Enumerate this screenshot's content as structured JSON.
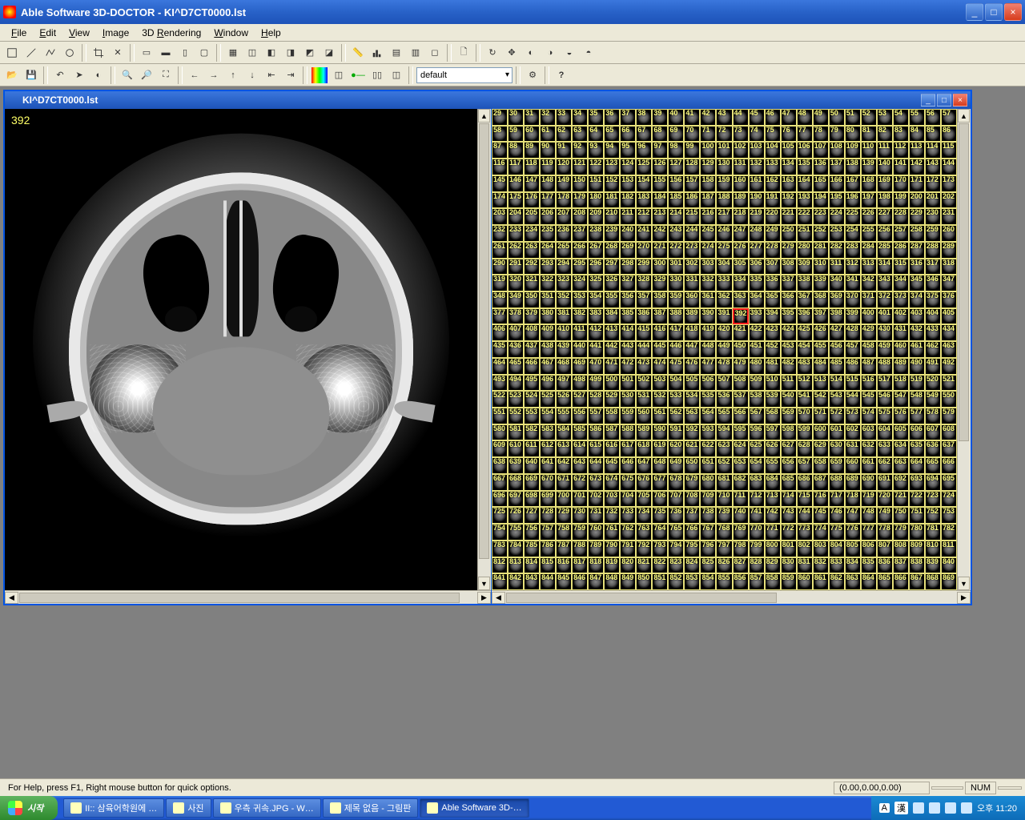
{
  "app": {
    "title": "Able Software 3D-DOCTOR - KI^D7CT0000.lst",
    "window_controls": {
      "minimize": "_",
      "maximize": "□",
      "close": "×"
    }
  },
  "menu": {
    "items": [
      "File",
      "Edit",
      "View",
      "Image",
      "3D Rendering",
      "Window",
      "Help"
    ]
  },
  "toolbar_combo": {
    "value": "default"
  },
  "child_window": {
    "title": "KI^D7CT0000.lst"
  },
  "left_pane": {
    "current_slice": "392"
  },
  "thumbnail_grid": {
    "start_index": 29,
    "end_index": 869,
    "cols": 29,
    "rows": 29,
    "selected_index": 392,
    "cell_border_color": "#e6e07a",
    "selected_border_color": "#ff2020",
    "label_color": "#ffff80"
  },
  "statusbar": {
    "help": "For Help, press F1, Right mouse button for quick options.",
    "coords": "(0.00,0.00,0.00)",
    "numlock": "NUM"
  },
  "taskbar": {
    "start": "시작",
    "items": [
      {
        "label": "II:: 삼육어학원에 …",
        "active": false
      },
      {
        "label": "사진",
        "active": false
      },
      {
        "label": "우측 귀속.JPG - W…",
        "active": false
      },
      {
        "label": "제목 없음 - 그림판",
        "active": false
      },
      {
        "label": "Able Software 3D-…",
        "active": true
      }
    ],
    "ime": {
      "a": "A",
      "han": "漢"
    },
    "clock": "오후 11:20"
  },
  "colors": {
    "xp_blue": "#2862c8",
    "mdi_bg": "#808080",
    "ui_bg": "#ece9d8"
  }
}
